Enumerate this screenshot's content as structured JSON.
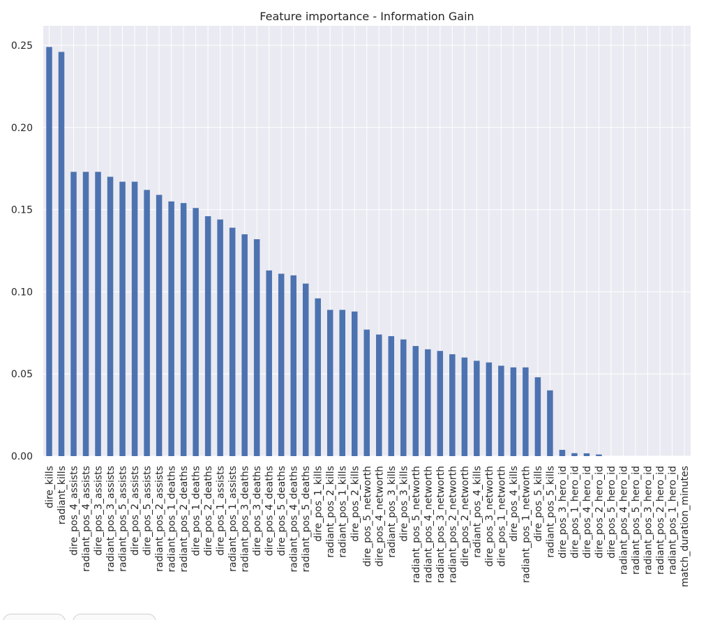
{
  "chart_data": {
    "type": "bar",
    "title": "Feature importance - Information Gain",
    "xlabel": "",
    "ylabel": "",
    "ylim": [
      0,
      0.26
    ],
    "yticks": [
      "0.00",
      "0.05",
      "0.10",
      "0.15",
      "0.20",
      "0.25"
    ],
    "grid": true,
    "legend": "none",
    "bar_color": "#4c72b0",
    "plot_background": "#eaeaf2",
    "categories": [
      "dire_kills",
      "radiant_kills",
      "dire_pos_4_assists",
      "radiant_pos_4_assists",
      "dire_pos_3_assists",
      "radiant_pos_3_assists",
      "radiant_pos_5_assists",
      "dire_pos_2_assists",
      "dire_pos_5_assists",
      "radiant_pos_2_assists",
      "radiant_pos_1_deaths",
      "radiant_pos_2_deaths",
      "dire_pos_1_deaths",
      "dire_pos_2_deaths",
      "dire_pos_1_assists",
      "radiant_pos_1_assists",
      "radiant_pos_3_deaths",
      "dire_pos_3_deaths",
      "dire_pos_4_deaths",
      "dire_pos_5_deaths",
      "radiant_pos_4_deaths",
      "radiant_pos_5_deaths",
      "dire_pos_1_kills",
      "radiant_pos_2_kills",
      "radiant_pos_1_kills",
      "dire_pos_2_kills",
      "dire_pos_5_networth",
      "dire_pos_4_networth",
      "radiant_pos_3_kills",
      "dire_pos_3_kills",
      "radiant_pos_5_networth",
      "radiant_pos_4_networth",
      "radiant_pos_3_networth",
      "radiant_pos_2_networth",
      "dire_pos_2_networth",
      "radiant_pos_4_kills",
      "dire_pos_3_networth",
      "dire_pos_1_networth",
      "dire_pos_4_kills",
      "radiant_pos_1_networth",
      "dire_pos_5_kills",
      "radiant_pos_5_kills",
      "dire_pos_3_hero_id",
      "dire_pos_1_hero_id",
      "dire_pos_4_hero_id",
      "dire_pos_2_hero_id",
      "dire_pos_5_hero_id",
      "radiant_pos_4_hero_id",
      "radiant_pos_5_hero_id",
      "radiant_pos_3_hero_id",
      "radiant_pos_2_hero_id",
      "radiant_pos_1_hero_id",
      "match_duration_minutes"
    ],
    "values": [
      0.249,
      0.246,
      0.173,
      0.173,
      0.173,
      0.17,
      0.167,
      0.167,
      0.162,
      0.159,
      0.155,
      0.154,
      0.151,
      0.146,
      0.144,
      0.139,
      0.135,
      0.132,
      0.113,
      0.111,
      0.11,
      0.105,
      0.096,
      0.089,
      0.089,
      0.088,
      0.077,
      0.074,
      0.073,
      0.071,
      0.067,
      0.065,
      0.064,
      0.062,
      0.06,
      0.058,
      0.057,
      0.055,
      0.054,
      0.054,
      0.048,
      0.04,
      0.0038,
      0.0018,
      0.0017,
      0.001,
      0.0,
      0.0,
      0.0,
      0.0,
      0.0,
      0.0,
      0.0
    ]
  }
}
